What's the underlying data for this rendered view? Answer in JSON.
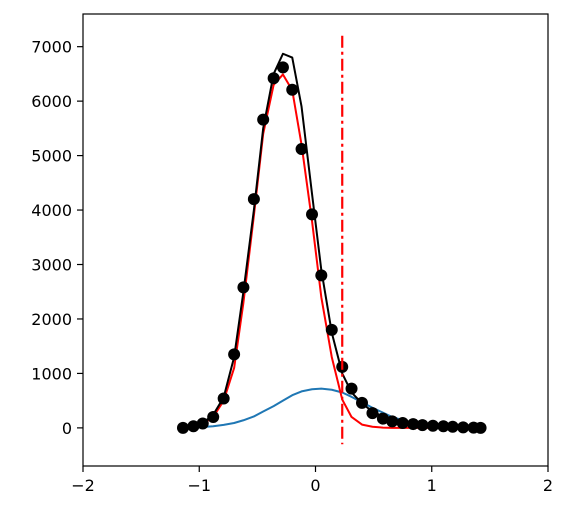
{
  "chart_data": {
    "type": "line",
    "xlim": [
      -2,
      2
    ],
    "ylim": [
      -700,
      7600
    ],
    "xticks": [
      -2,
      -1,
      0,
      1,
      2
    ],
    "yticks": [
      0,
      1000,
      2000,
      3000,
      4000,
      5000,
      6000,
      7000
    ],
    "xtick_labels": [
      "−2",
      "−1",
      "0",
      "1",
      "2"
    ],
    "ytick_labels": [
      "0",
      "1000",
      "2000",
      "3000",
      "4000",
      "5000",
      "6000",
      "7000"
    ],
    "grid": false,
    "legend": "none",
    "vline": {
      "x": 0.23,
      "y_range": [
        -300,
        7200
      ],
      "color": "#ff0000",
      "style": "dash-dot"
    },
    "series": [
      {
        "kind": "scatter",
        "color": "#000000",
        "x": [
          -1.14,
          -1.05,
          -0.97,
          -0.88,
          -0.79,
          -0.7,
          -0.62,
          -0.53,
          -0.45,
          -0.36,
          -0.28,
          -0.2,
          -0.12,
          -0.03,
          0.05,
          0.14,
          0.23,
          0.31,
          0.4,
          0.49,
          0.58,
          0.66,
          0.75,
          0.84,
          0.92,
          1.01,
          1.1,
          1.18,
          1.27,
          1.36,
          1.42
        ],
        "y": [
          0,
          30,
          80,
          200,
          540,
          1350,
          2580,
          4200,
          5660,
          6420,
          6620,
          6210,
          5120,
          3920,
          2800,
          1800,
          1120,
          720,
          460,
          270,
          170,
          120,
          90,
          70,
          50,
          40,
          30,
          20,
          10,
          5,
          0
        ]
      },
      {
        "kind": "line",
        "color": "#000000",
        "x": [
          -1.14,
          -1.05,
          -0.97,
          -0.88,
          -0.79,
          -0.7,
          -0.62,
          -0.53,
          -0.45,
          -0.36,
          -0.28,
          -0.2,
          -0.12,
          -0.03,
          0.05,
          0.14,
          0.23,
          0.31,
          0.4,
          0.49,
          0.58,
          0.66,
          0.75,
          0.84,
          0.92,
          1.01,
          1.1,
          1.18,
          1.27,
          1.36,
          1.42
        ],
        "y": [
          10,
          30,
          90,
          240,
          560,
          1300,
          2500,
          4000,
          5500,
          6500,
          6870,
          6800,
          5900,
          4300,
          2900,
          1750,
          1000,
          650,
          450,
          300,
          210,
          150,
          110,
          80,
          60,
          40,
          30,
          20,
          10,
          5,
          0
        ]
      },
      {
        "kind": "line",
        "color": "#ff0000",
        "x": [
          -1.14,
          -1.05,
          -0.97,
          -0.88,
          -0.79,
          -0.7,
          -0.62,
          -0.53,
          -0.45,
          -0.36,
          -0.28,
          -0.2,
          -0.12,
          -0.03,
          0.05,
          0.14,
          0.23,
          0.31,
          0.4,
          0.49,
          0.58,
          0.66,
          0.75,
          0.84,
          0.92,
          1.01,
          1.1,
          1.18,
          1.27,
          1.36,
          1.42
        ],
        "y": [
          0,
          20,
          70,
          200,
          500,
          1100,
          2300,
          3900,
          5400,
          6300,
          6490,
          6200,
          5200,
          3800,
          2400,
          1300,
          520,
          200,
          60,
          20,
          5,
          0,
          0,
          0,
          0,
          0,
          0,
          0,
          0,
          0,
          0
        ]
      },
      {
        "kind": "line",
        "color": "#1f77b4",
        "x": [
          -1.14,
          -1.05,
          -0.97,
          -0.88,
          -0.79,
          -0.7,
          -0.62,
          -0.53,
          -0.45,
          -0.36,
          -0.28,
          -0.2,
          -0.12,
          -0.03,
          0.05,
          0.14,
          0.23,
          0.31,
          0.4,
          0.49,
          0.58,
          0.66,
          0.75,
          0.84,
          0.92,
          1.01,
          1.1,
          1.18,
          1.27,
          1.36,
          1.42
        ],
        "y": [
          0,
          5,
          15,
          30,
          55,
          90,
          140,
          210,
          300,
          400,
          500,
          600,
          670,
          710,
          720,
          700,
          650,
          570,
          470,
          370,
          280,
          200,
          140,
          90,
          60,
          35,
          20,
          10,
          5,
          2,
          0
        ]
      }
    ]
  }
}
